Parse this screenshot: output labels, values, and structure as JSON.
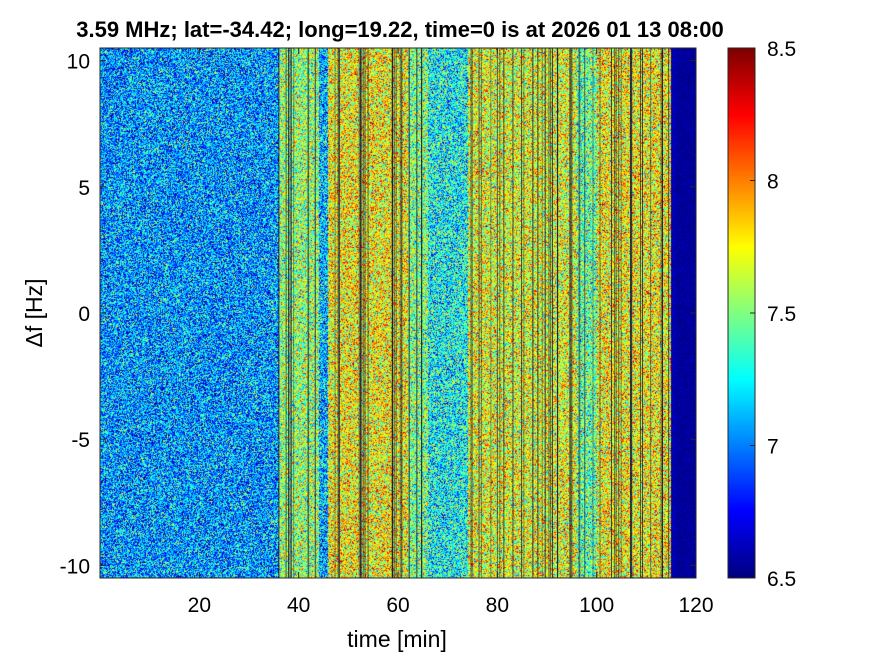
{
  "chart_data": {
    "type": "heatmap",
    "title": "3.59 MHz;  lat=-34.42; long=19.22, time=0 is at 2026 01 13 08:00",
    "xlabel": "time [min]",
    "ylabel": "Δf [Hz]",
    "xlim": [
      0,
      120
    ],
    "ylim": [
      -10.5,
      10.5
    ],
    "xticks": [
      20,
      40,
      60,
      80,
      100,
      120
    ],
    "xtick_labels": [
      "20",
      "40",
      "60",
      "80",
      "100",
      "120"
    ],
    "yticks": [
      10,
      5,
      0,
      -5,
      -10
    ],
    "ytick_labels": [
      "10",
      "5",
      "0",
      "-5",
      "-10"
    ],
    "colorbar": {
      "colormap": "jet",
      "range": [
        6.5,
        8.5
      ],
      "ticks": [
        8.5,
        8,
        7.5,
        7,
        6.5
      ],
      "tick_labels": [
        "8.5",
        "8",
        "7.5",
        "7",
        "6.5"
      ]
    },
    "time_bands_mean_level": [
      {
        "start": 0,
        "end": 36,
        "level": 7.05
      },
      {
        "start": 36,
        "end": 44,
        "level": 7.55
      },
      {
        "start": 44,
        "end": 46,
        "level": 7.1
      },
      {
        "start": 46,
        "end": 62,
        "level": 7.75
      },
      {
        "start": 62,
        "end": 66,
        "level": 7.5
      },
      {
        "start": 66,
        "end": 74,
        "level": 7.25
      },
      {
        "start": 74,
        "end": 96,
        "level": 7.7
      },
      {
        "start": 96,
        "end": 100,
        "level": 7.45
      },
      {
        "start": 100,
        "end": 115,
        "level": 7.75
      },
      {
        "start": 115,
        "end": 116,
        "level": 6.6
      },
      {
        "start": 116,
        "end": 120,
        "level": 6.55
      }
    ]
  }
}
